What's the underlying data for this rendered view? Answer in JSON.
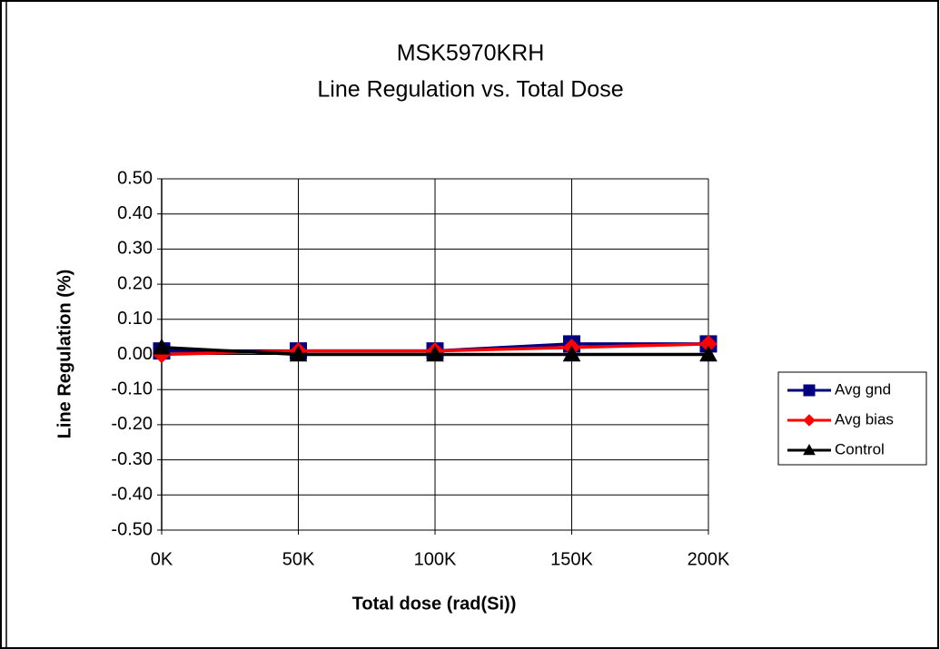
{
  "chart_data": {
    "type": "line",
    "title": "MSK5970KRH",
    "subtitle": "Line Regulation vs. Total Dose",
    "x_label": "Total dose (rad(Si))",
    "y_label": "Line Regulation (%)",
    "categories": [
      "0K",
      "50K",
      "100K",
      "150K",
      "200K"
    ],
    "series": [
      {
        "name": "Avg gnd",
        "color": "#000080",
        "marker": "square",
        "values": [
          0.01,
          0.01,
          0.01,
          0.03,
          0.03
        ]
      },
      {
        "name": "Avg bias",
        "color": "#ff0000",
        "marker": "diamond",
        "values": [
          0.0,
          0.01,
          0.01,
          0.02,
          0.03
        ]
      },
      {
        "name": "Control",
        "color": "#000000",
        "marker": "triangle",
        "values": [
          0.02,
          0.0,
          0.0,
          0.0,
          0.0
        ]
      }
    ],
    "ylim": [
      -0.5,
      0.5
    ],
    "yticks": [
      {
        "value": 0.5,
        "label": "0.50"
      },
      {
        "value": 0.4,
        "label": "0.40"
      },
      {
        "value": 0.3,
        "label": "0.30"
      },
      {
        "value": 0.2,
        "label": "0.20"
      },
      {
        "value": 0.1,
        "label": "0.10"
      },
      {
        "value": 0,
        "label": "0.00"
      },
      {
        "value": -0.1,
        "label": "-0.10"
      },
      {
        "value": -0.2,
        "label": "-0.20"
      },
      {
        "value": -0.3,
        "label": "-0.30"
      },
      {
        "value": -0.4,
        "label": "-0.40"
      },
      {
        "value": -0.5,
        "label": "-0.50"
      }
    ],
    "grid": true,
    "legend": "right"
  }
}
